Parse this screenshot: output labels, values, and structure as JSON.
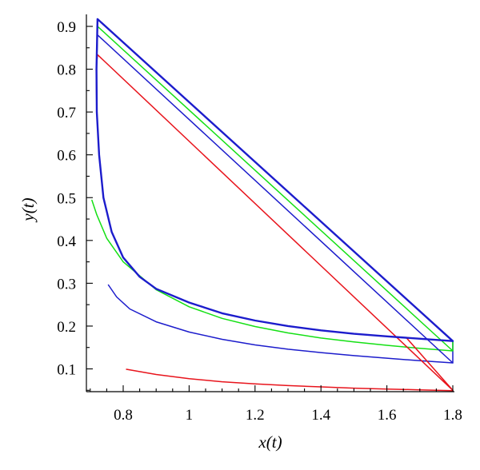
{
  "chart_data": {
    "type": "line",
    "xlabel": "x(t)",
    "ylabel": "y(t)",
    "xlim": [
      0.69,
      1.8
    ],
    "ylim": [
      0.03,
      0.925
    ],
    "x_ticks": [
      0.8,
      1,
      1.2,
      1.4,
      1.6,
      1.8
    ],
    "x_tick_labels": [
      "0.8",
      "1",
      "1.2",
      "1.4",
      "1.6",
      "1.8"
    ],
    "y_ticks": [
      0.1,
      0.2,
      0.3,
      0.4,
      0.5,
      0.6,
      0.7,
      0.8,
      0.9
    ],
    "y_tick_labels": [
      "0.1",
      "0.2",
      "0.3",
      "0.4",
      "0.5",
      "0.6",
      "0.7",
      "0.8",
      "0.9"
    ],
    "grid": false,
    "legend": "none",
    "series": [
      {
        "color": "#e8141c",
        "width": 1.5,
        "points": [
          [
            0.81,
            0.099
          ],
          [
            0.9,
            0.087
          ],
          [
            1.0,
            0.077
          ],
          [
            1.1,
            0.07
          ],
          [
            1.2,
            0.065
          ],
          [
            1.3,
            0.061
          ],
          [
            1.4,
            0.058
          ],
          [
            1.5,
            0.055
          ],
          [
            1.6,
            0.053
          ],
          [
            1.7,
            0.051
          ],
          [
            1.8,
            0.049
          ]
        ]
      },
      {
        "color": "#1c1ccc",
        "width": 1.5,
        "points": [
          [
            0.755,
            0.296
          ],
          [
            0.78,
            0.268
          ],
          [
            0.82,
            0.24
          ],
          [
            0.9,
            0.21
          ],
          [
            1.0,
            0.186
          ],
          [
            1.1,
            0.169
          ],
          [
            1.2,
            0.156
          ],
          [
            1.3,
            0.146
          ],
          [
            1.4,
            0.138
          ],
          [
            1.5,
            0.131
          ],
          [
            1.6,
            0.125
          ],
          [
            1.7,
            0.119
          ],
          [
            1.8,
            0.114
          ]
        ]
      },
      {
        "color": "#14e014",
        "width": 1.5,
        "points": [
          [
            0.705,
            0.494
          ],
          [
            0.72,
            0.46
          ],
          [
            0.75,
            0.405
          ],
          [
            0.8,
            0.35
          ],
          [
            0.9,
            0.285
          ],
          [
            1.0,
            0.245
          ],
          [
            1.1,
            0.218
          ],
          [
            1.2,
            0.199
          ],
          [
            1.3,
            0.184
          ],
          [
            1.4,
            0.172
          ],
          [
            1.5,
            0.163
          ],
          [
            1.6,
            0.155
          ],
          [
            1.7,
            0.148
          ],
          [
            1.8,
            0.142
          ]
        ]
      },
      {
        "color": "#e8141c",
        "width": 1.5,
        "points": [
          [
            0.722,
            0.834
          ],
          [
            0.718,
            0.8
          ],
          [
            0.72,
            0.7
          ],
          [
            0.727,
            0.6
          ],
          [
            0.74,
            0.5
          ],
          [
            0.765,
            0.42
          ],
          [
            0.8,
            0.36
          ],
          [
            0.85,
            0.315
          ],
          [
            0.9,
            0.287
          ],
          [
            1.0,
            0.255
          ],
          [
            1.1,
            0.23
          ],
          [
            1.2,
            0.213
          ],
          [
            1.3,
            0.2
          ],
          [
            1.4,
            0.19
          ],
          [
            1.5,
            0.182
          ],
          [
            1.6,
            0.176
          ],
          [
            1.66,
            0.172
          ],
          [
            1.8,
            0.05
          ],
          [
            0.722,
            0.834
          ]
        ]
      },
      {
        "color": "#1c1ccc",
        "width": 1.5,
        "points": [
          [
            0.722,
            0.88
          ],
          [
            0.719,
            0.8
          ],
          [
            0.72,
            0.7
          ],
          [
            0.727,
            0.6
          ],
          [
            0.74,
            0.5
          ],
          [
            0.765,
            0.42
          ],
          [
            0.8,
            0.36
          ],
          [
            0.85,
            0.315
          ],
          [
            0.9,
            0.287
          ],
          [
            1.0,
            0.255
          ],
          [
            1.1,
            0.23
          ],
          [
            1.2,
            0.213
          ],
          [
            1.3,
            0.2
          ],
          [
            1.4,
            0.19
          ],
          [
            1.5,
            0.182
          ],
          [
            1.6,
            0.176
          ],
          [
            1.8,
            0.165
          ],
          [
            1.8,
            0.114
          ],
          [
            0.722,
            0.88
          ]
        ]
      },
      {
        "color": "#14e014",
        "width": 1.5,
        "points": [
          [
            0.722,
            0.9
          ],
          [
            0.719,
            0.8
          ],
          [
            0.72,
            0.7
          ],
          [
            0.727,
            0.6
          ],
          [
            0.74,
            0.5
          ],
          [
            0.765,
            0.42
          ],
          [
            0.8,
            0.36
          ],
          [
            0.85,
            0.315
          ],
          [
            0.9,
            0.287
          ],
          [
            1.0,
            0.255
          ],
          [
            1.1,
            0.23
          ],
          [
            1.2,
            0.213
          ],
          [
            1.3,
            0.2
          ],
          [
            1.4,
            0.19
          ],
          [
            1.5,
            0.182
          ],
          [
            1.6,
            0.176
          ],
          [
            1.8,
            0.165
          ],
          [
            1.8,
            0.142
          ],
          [
            0.722,
            0.9
          ]
        ]
      },
      {
        "color": "#1c1ccc",
        "width": 2.4,
        "points": [
          [
            0.722,
            0.917
          ],
          [
            0.719,
            0.8
          ],
          [
            0.72,
            0.7
          ],
          [
            0.727,
            0.6
          ],
          [
            0.74,
            0.5
          ],
          [
            0.765,
            0.42
          ],
          [
            0.8,
            0.36
          ],
          [
            0.85,
            0.315
          ],
          [
            0.9,
            0.287
          ],
          [
            1.0,
            0.255
          ],
          [
            1.1,
            0.23
          ],
          [
            1.2,
            0.213
          ],
          [
            1.3,
            0.2
          ],
          [
            1.4,
            0.19
          ],
          [
            1.5,
            0.182
          ],
          [
            1.6,
            0.176
          ],
          [
            1.8,
            0.165
          ],
          [
            0.722,
            0.917
          ]
        ]
      }
    ]
  }
}
